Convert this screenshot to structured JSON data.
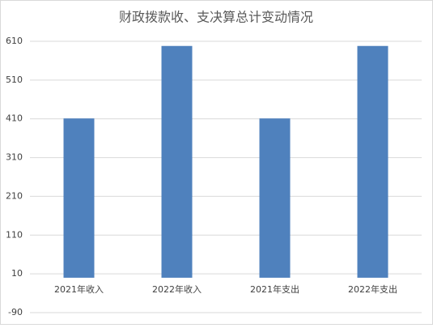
{
  "chart_data": {
    "type": "bar",
    "title": "财政拨款收、支决算总计变动情况",
    "categories": [
      "2021年收入",
      "2022年收入",
      "2021年支出",
      "2022年支出"
    ],
    "values": [
      411,
      598,
      411,
      598
    ],
    "color": "#4f81bd",
    "ylim": [
      -90,
      610
    ],
    "yticks": [
      -90,
      10,
      110,
      210,
      310,
      410,
      510,
      610
    ],
    "grid": true
  }
}
